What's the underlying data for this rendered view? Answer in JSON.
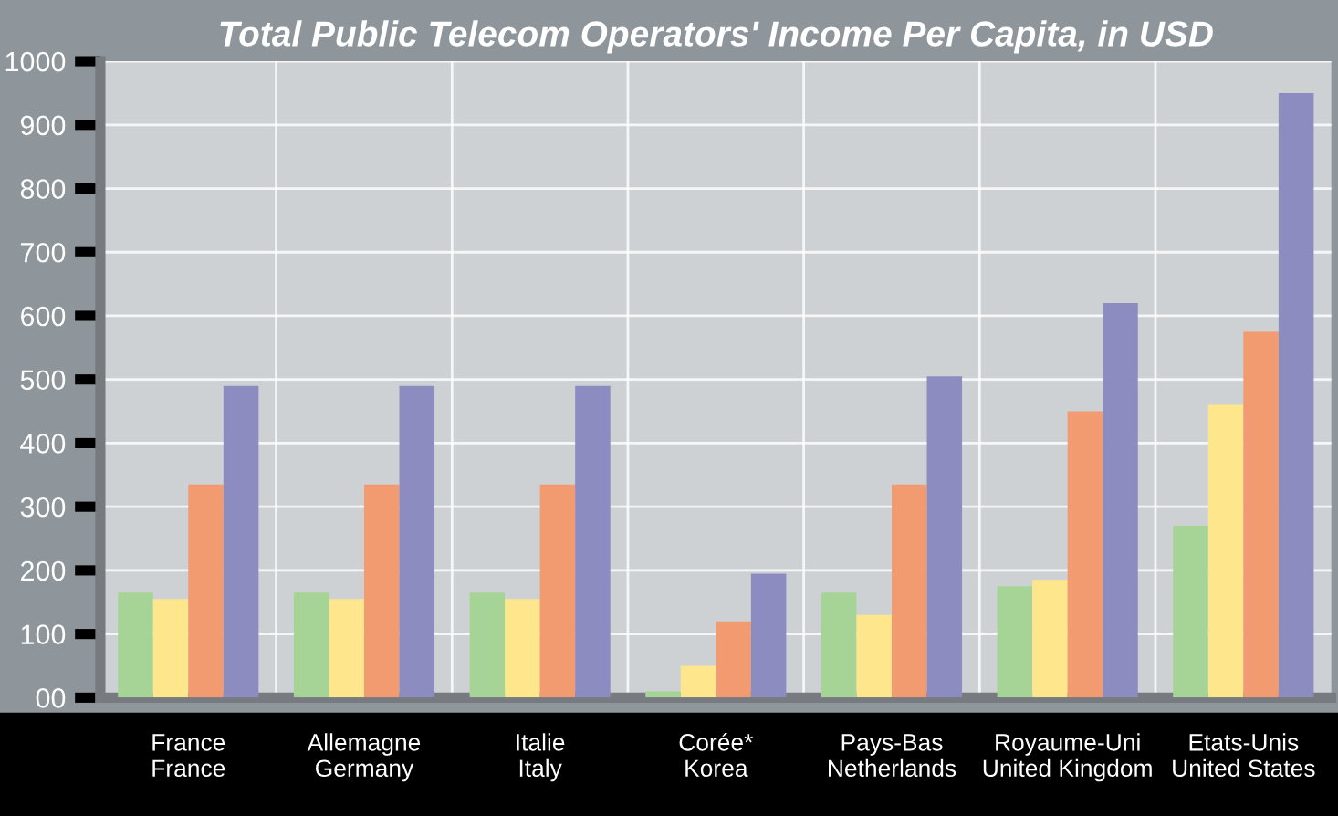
{
  "chart_data": {
    "type": "bar",
    "title": "Total Public Telecom Operators' Income Per Capita, in USD",
    "categories": [
      "France\nFrance",
      "Allemagne\nGermany",
      "Italie\nItaly",
      "Corée*\nKorea",
      "Pays-Bas\nNetherlands",
      "Royaume-Uni\nUnited Kingdom",
      "Etats-Unis\nUnited States"
    ],
    "series": [
      {
        "color": "#a6d496",
        "values": [
          165,
          165,
          165,
          10,
          165,
          175,
          270
        ]
      },
      {
        "color": "#fde68c",
        "values": [
          155,
          155,
          155,
          50,
          130,
          185,
          460
        ]
      },
      {
        "color": "#f29a70",
        "values": [
          335,
          335,
          335,
          120,
          335,
          450,
          575
        ]
      },
      {
        "color": "#8c8cc0",
        "values": [
          490,
          490,
          490,
          195,
          505,
          620,
          950
        ]
      }
    ],
    "ylim": [
      0,
      1000
    ],
    "yticks": [
      {
        "value": 0,
        "label": "00"
      },
      100,
      200,
      300,
      400,
      500,
      600,
      700,
      800,
      900,
      1000
    ],
    "grid": true
  }
}
